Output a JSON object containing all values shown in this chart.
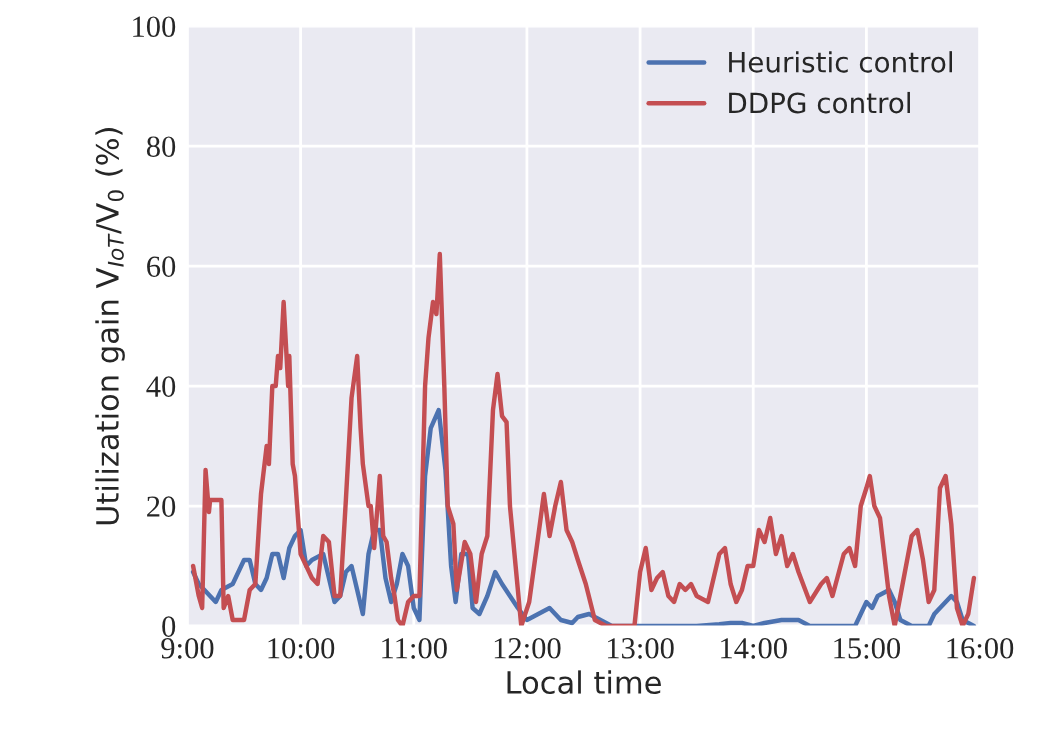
{
  "chart_data": {
    "type": "line",
    "xlabel": "Local time",
    "ylabel": "Utilization gain V$_{IoT}$/V$_{0}$ (%)",
    "xlim": [
      9,
      16
    ],
    "xticks": [
      {
        "value": 9,
        "label": "9:00"
      },
      {
        "value": 10,
        "label": "10:00"
      },
      {
        "value": 11,
        "label": "11:00"
      },
      {
        "value": 12,
        "label": "12:00"
      },
      {
        "value": 13,
        "label": "13:00"
      },
      {
        "value": 14,
        "label": "14:00"
      },
      {
        "value": 15,
        "label": "15:00"
      },
      {
        "value": 16,
        "label": "16:00"
      }
    ],
    "ylim": [
      0,
      100
    ],
    "yticks": [
      0,
      20,
      40,
      60,
      80,
      100
    ],
    "grid": true,
    "legend": "top right",
    "marker": "none",
    "line_style": "solid",
    "series": [
      {
        "name": "Heuristic control",
        "color": "#4c72b0",
        "x": [
          9.05,
          9.1,
          9.2,
          9.25,
          9.3,
          9.4,
          9.5,
          9.55,
          9.6,
          9.65,
          9.7,
          9.75,
          9.8,
          9.85,
          9.9,
          9.95,
          10.0,
          10.05,
          10.1,
          10.2,
          10.25,
          10.3,
          10.35,
          10.4,
          10.45,
          10.5,
          10.55,
          10.6,
          10.65,
          10.7,
          10.75,
          10.8,
          10.85,
          10.9,
          10.95,
          11.0,
          11.05,
          11.1,
          11.15,
          11.22,
          11.28,
          11.33,
          11.37,
          11.42,
          11.48,
          11.52,
          11.58,
          11.65,
          11.72,
          11.78,
          11.85,
          11.92,
          12.0,
          12.1,
          12.2,
          12.3,
          12.4,
          12.45,
          12.55,
          12.65,
          12.75,
          13.0,
          13.5,
          13.7,
          13.8,
          13.9,
          14.0,
          14.1,
          14.25,
          14.4,
          14.5,
          14.9,
          14.95,
          15.0,
          15.05,
          15.1,
          15.2,
          15.25,
          15.3,
          15.4,
          15.55,
          15.6,
          15.7,
          15.75,
          15.8,
          15.85,
          15.95
        ],
        "values": [
          9,
          7,
          5,
          4,
          6,
          7,
          11,
          11,
          7,
          6,
          8,
          12,
          12,
          8,
          13,
          15,
          16,
          10,
          11,
          12,
          8,
          4,
          5,
          9,
          10,
          6,
          2,
          12,
          16,
          16,
          8,
          4,
          7,
          12,
          10,
          3,
          1,
          25,
          33,
          36,
          26,
          10,
          4,
          12,
          12,
          3,
          2,
          5,
          9,
          7,
          5,
          3,
          1,
          2,
          3,
          1,
          0.5,
          1.5,
          2,
          1,
          0,
          0,
          0,
          0.3,
          0.5,
          0.5,
          0,
          0.5,
          1,
          1,
          0,
          0,
          2,
          4,
          3,
          5,
          6,
          4,
          1,
          0,
          0,
          2,
          4,
          5,
          4,
          1,
          0
        ]
      },
      {
        "name": "DDPG control",
        "color": "#c44e52",
        "x": [
          9.05,
          9.1,
          9.13,
          9.16,
          9.19,
          9.2,
          9.25,
          9.3,
          9.32,
          9.36,
          9.4,
          9.5,
          9.55,
          9.6,
          9.65,
          9.7,
          9.72,
          9.75,
          9.78,
          9.8,
          9.82,
          9.85,
          9.87,
          9.89,
          9.9,
          9.93,
          9.95,
          10.0,
          10.05,
          10.1,
          10.15,
          10.2,
          10.25,
          10.3,
          10.35,
          10.4,
          10.45,
          10.5,
          10.53,
          10.55,
          10.6,
          10.62,
          10.65,
          10.68,
          10.7,
          10.73,
          10.76,
          10.8,
          10.83,
          10.86,
          10.9,
          10.95,
          11.0,
          11.05,
          11.1,
          11.13,
          11.17,
          11.2,
          11.23,
          11.27,
          11.3,
          11.35,
          11.38,
          11.45,
          11.5,
          11.55,
          11.6,
          11.65,
          11.7,
          11.74,
          11.78,
          11.82,
          11.85,
          11.9,
          11.95,
          12.02,
          12.1,
          12.15,
          12.2,
          12.25,
          12.3,
          12.35,
          12.4,
          12.45,
          12.52,
          12.6,
          12.7,
          12.85,
          12.95,
          13.0,
          13.05,
          13.1,
          13.15,
          13.2,
          13.25,
          13.3,
          13.35,
          13.4,
          13.45,
          13.5,
          13.6,
          13.7,
          13.75,
          13.8,
          13.85,
          13.9,
          13.95,
          14.0,
          14.05,
          14.1,
          14.15,
          14.2,
          14.25,
          14.3,
          14.35,
          14.4,
          14.5,
          14.6,
          14.65,
          14.7,
          14.8,
          14.85,
          14.9,
          14.95,
          15.0,
          15.03,
          15.07,
          15.12,
          15.2,
          15.25,
          15.3,
          15.4,
          15.45,
          15.5,
          15.55,
          15.6,
          15.65,
          15.7,
          15.75,
          15.8,
          15.85,
          15.9,
          15.95
        ],
        "values": [
          10,
          5,
          3,
          26,
          19,
          21,
          21,
          21,
          3,
          5,
          1,
          1,
          6,
          7,
          22,
          30,
          27,
          40,
          40,
          45,
          43,
          54,
          47,
          40,
          45,
          27,
          25,
          12,
          10,
          8,
          7,
          15,
          14,
          5,
          5,
          21,
          38,
          45,
          33,
          27,
          20,
          20,
          13,
          20,
          25,
          15,
          14,
          8,
          5,
          1,
          0,
          4,
          5,
          5,
          40,
          48,
          54,
          52,
          62,
          40,
          20,
          17,
          6,
          14,
          12,
          4,
          12,
          15,
          36,
          42,
          35,
          34,
          20,
          10,
          0,
          4,
          15,
          22,
          15,
          20,
          24,
          16,
          14,
          11,
          7,
          1,
          0,
          0,
          0,
          9,
          13,
          6,
          8,
          9,
          5,
          4,
          7,
          6,
          7,
          5,
          4,
          12,
          13,
          7,
          4,
          6,
          10,
          10,
          16,
          14,
          18,
          12,
          15,
          10,
          12,
          9,
          4,
          7,
          8,
          5,
          12,
          13,
          10,
          20,
          23,
          25,
          20,
          18,
          5,
          0,
          5,
          15,
          16,
          11,
          4,
          6,
          23,
          25,
          17,
          3,
          0,
          2,
          8
        ]
      }
    ]
  }
}
